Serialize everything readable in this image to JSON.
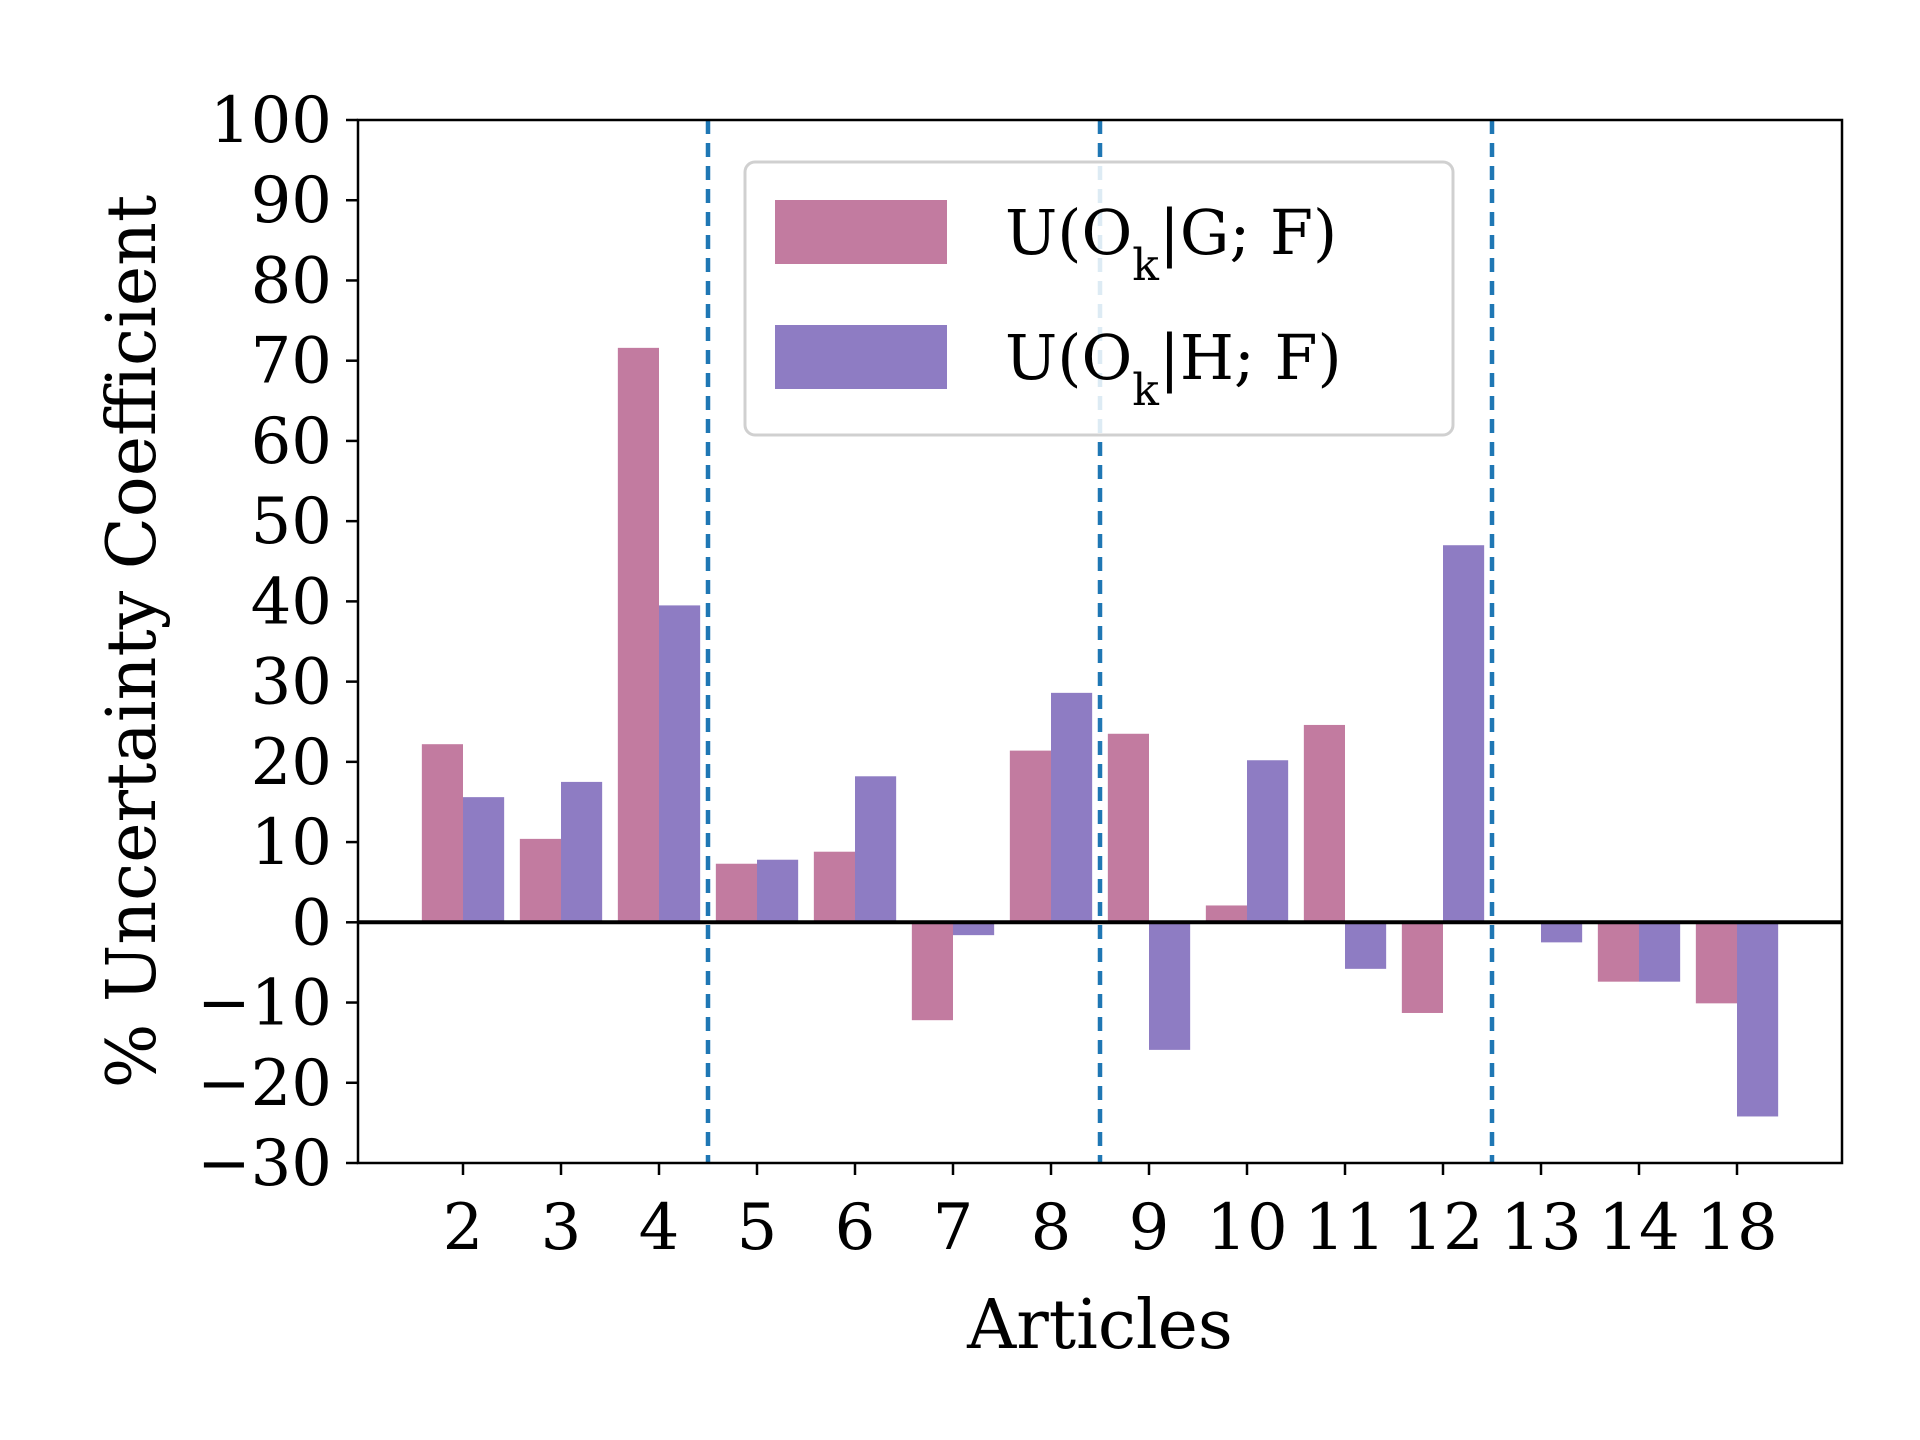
{
  "chart_data": {
    "type": "bar",
    "categories": [
      "2",
      "3",
      "4",
      "5",
      "6",
      "7",
      "8",
      "9",
      "10",
      "11",
      "12",
      "13",
      "14",
      "18"
    ],
    "series": [
      {
        "name": "U(O_k|G;F)",
        "label_main": "U(O",
        "label_sub": "k",
        "label_rest": "|G; F)",
        "color": "#c27ba0",
        "values": [
          22.2,
          10.4,
          71.6,
          7.3,
          8.8,
          -12.2,
          21.4,
          23.5,
          2.1,
          24.6,
          -11.3,
          0,
          -7.4,
          -10.1
        ]
      },
      {
        "name": "U(O_k|H;F)",
        "label_main": "U(O",
        "label_sub": "k",
        "label_rest": "|H; F)",
        "color": "#8e7cc3",
        "values": [
          15.6,
          17.5,
          39.5,
          7.8,
          18.2,
          -1.6,
          28.6,
          -15.9,
          20.2,
          -5.8,
          47.0,
          -2.5,
          -7.4,
          -24.2
        ]
      }
    ],
    "xlabel": "Articles",
    "ylabel": "% Uncertainty Coefficient",
    "ylim": [
      -30,
      100
    ],
    "yticks": [
      -30,
      -20,
      -10,
      0,
      10,
      20,
      30,
      40,
      50,
      60,
      70,
      80,
      90,
      100
    ],
    "ytick_labels": [
      "−30",
      "−20",
      "−10",
      "0",
      "10",
      "20",
      "30",
      "40",
      "50",
      "60",
      "70",
      "80",
      "90",
      "100"
    ],
    "group_separators_after_index": [
      2,
      6,
      10
    ],
    "separator_color": "#1f77b4",
    "zero_line": true,
    "grid": false,
    "legend_position": "top-center"
  }
}
